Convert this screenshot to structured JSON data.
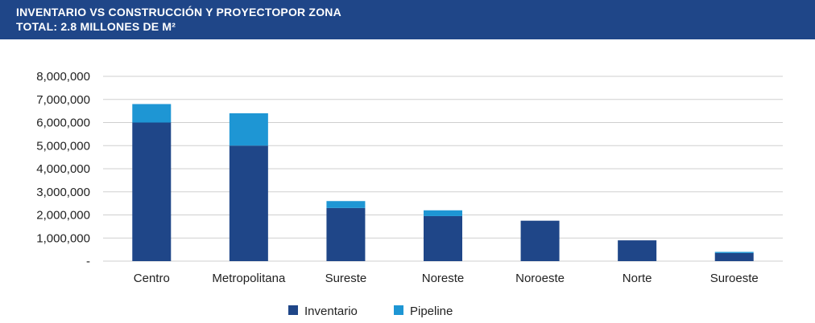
{
  "header": {
    "title": "INVENTARIO VS CONSTRUCCIÓN Y PROYECTOPOR ZONA",
    "subtitle": "TOTAL: 2.8 MILLONES DE M²"
  },
  "chart_data": {
    "type": "bar",
    "stacked": true,
    "categories": [
      "Centro",
      "Metropolitana",
      "Sureste",
      "Noreste",
      "Noroeste",
      "Norte",
      "Suroeste"
    ],
    "series": [
      {
        "name": "Inventario",
        "color": "#1f4688",
        "values": [
          6000000,
          5000000,
          2300000,
          1950000,
          1750000,
          900000,
          350000
        ]
      },
      {
        "name": "Pipeline",
        "color": "#1e96d4",
        "values": [
          800000,
          1400000,
          300000,
          250000,
          0,
          0,
          50000
        ]
      }
    ],
    "ylim": [
      0,
      8000000
    ],
    "yticks": [
      {
        "value": 0,
        "label": "-"
      },
      {
        "value": 1000000,
        "label": "1,000,000"
      },
      {
        "value": 2000000,
        "label": "2,000,000"
      },
      {
        "value": 3000000,
        "label": "3,000,000"
      },
      {
        "value": 4000000,
        "label": "4,000,000"
      },
      {
        "value": 5000000,
        "label": "5,000,000"
      },
      {
        "value": 6000000,
        "label": "6,000,000"
      },
      {
        "value": 7000000,
        "label": "7,000,000"
      },
      {
        "value": 8000000,
        "label": "8,000,000"
      }
    ],
    "grid": true,
    "legend_position": "bottom-center"
  }
}
